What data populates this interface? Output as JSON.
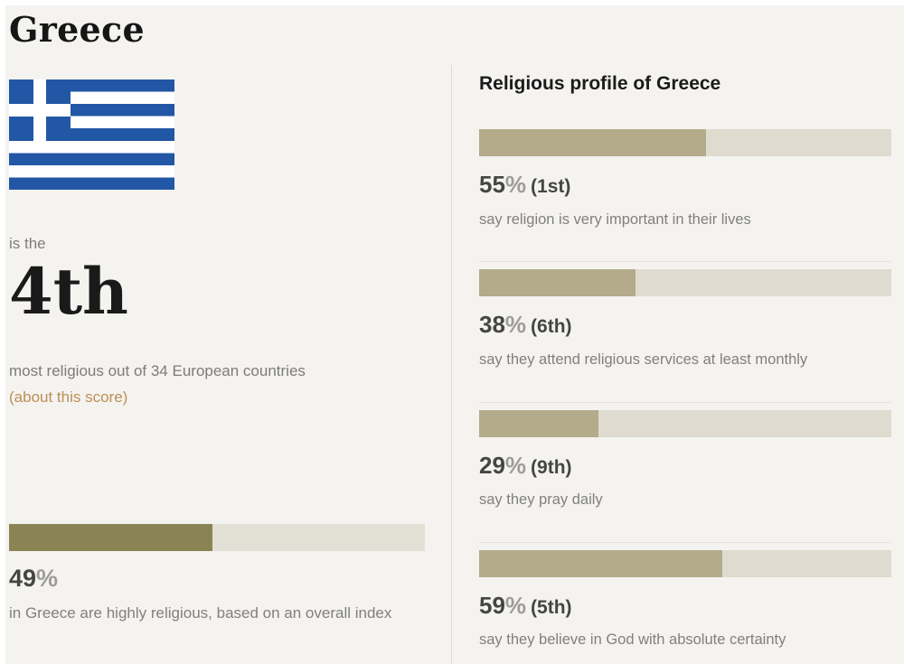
{
  "colors": {
    "background": "#f4f3f0",
    "flag_blue": "#2257a5",
    "flag_white": "#ffffff",
    "profile_bar_fill": "#b3ab8a",
    "profile_bar_track": "#dfdccf",
    "index_bar_fill": "#8a8354",
    "index_bar_track": "#e3e0d5",
    "link_color": "#bd8f55",
    "value_text": "#454545",
    "percent_sign_text": "#9d9c98",
    "muted_text": "#81807c"
  },
  "percent_sign": "%",
  "left": {
    "title": "Greece",
    "flag": "flag-of-greece",
    "pre_rank": "is the",
    "rank": "4th",
    "rank_context": "most religious out of 34 European countries",
    "score_link": "(about this score)",
    "index": {
      "value": "49",
      "percent": 49,
      "caption": "in Greece are highly religious, based on an overall index"
    }
  },
  "profile": {
    "heading": "Religious profile of Greece",
    "rows": [
      {
        "value": "55",
        "percent": 55,
        "rank": "(1st)",
        "caption": "say religion is very important in their lives"
      },
      {
        "value": "38",
        "percent": 38,
        "rank": "(6th)",
        "caption": "say they attend religious services at least monthly"
      },
      {
        "value": "29",
        "percent": 29,
        "rank": "(9th)",
        "caption": "say they pray daily"
      },
      {
        "value": "59",
        "percent": 59,
        "rank": "(5th)",
        "caption": "say they believe in God with absolute certainty"
      }
    ]
  },
  "chart_data": [
    {
      "type": "bar",
      "title": "Religious profile of Greece",
      "categories": [
        "say religion is very important in their lives",
        "say they attend religious services at least monthly",
        "say they pray daily",
        "say they believe in God with absolute certainty"
      ],
      "values": [
        55,
        38,
        29,
        59
      ],
      "data_labels": [
        "55% (1st)",
        "38% (6th)",
        "29% (9th)",
        "59% (5th)"
      ],
      "xlabel": "",
      "ylabel": "",
      "xlim": [
        0,
        100
      ],
      "orientation": "horizontal",
      "grid": false,
      "legend": false
    },
    {
      "type": "bar",
      "title": "Overall religiosity index",
      "categories": [
        "in Greece are highly religious, based on an overall index"
      ],
      "values": [
        49
      ],
      "data_labels": [
        "49%"
      ],
      "annotations": [
        "Greece is the 4th most religious out of 34 European countries"
      ],
      "xlim": [
        0,
        100
      ],
      "orientation": "horizontal",
      "grid": false,
      "legend": false
    }
  ]
}
